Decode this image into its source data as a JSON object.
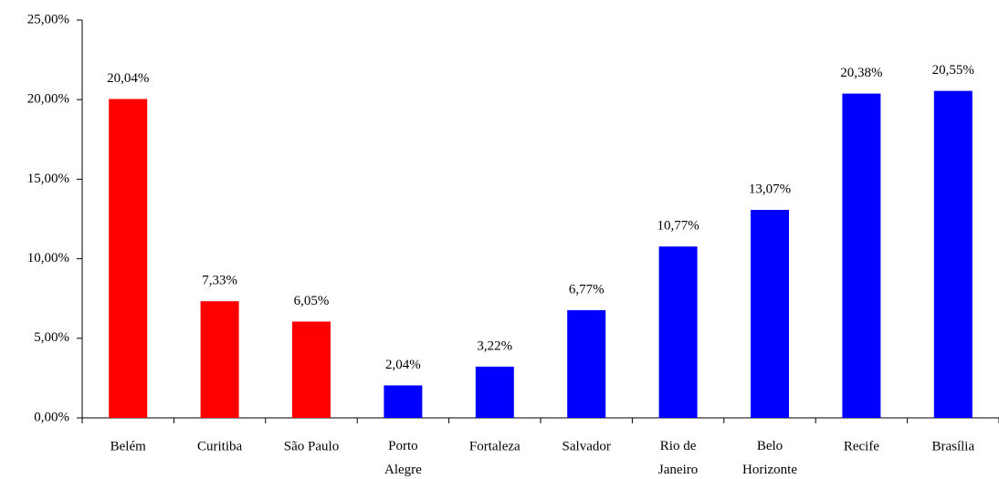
{
  "chart_data": {
    "type": "bar",
    "categories": [
      "Belém",
      "Curitiba",
      "São Paulo",
      "Porto\nAlegre",
      "Fortaleza",
      "Salvador",
      "Rio de\nJaneiro",
      "Belo\nHorizonte",
      "Recife",
      "Brasília"
    ],
    "values": [
      20.04,
      7.33,
      6.05,
      2.04,
      3.22,
      6.77,
      10.77,
      13.07,
      20.38,
      20.55
    ],
    "value_labels": [
      "20,04%",
      "7,33%",
      "6,05%",
      "2,04%",
      "3,22%",
      "6,77%",
      "10,77%",
      "13,07%",
      "20,38%",
      "20,55%"
    ],
    "colors": [
      "#ff0000",
      "#ff0000",
      "#ff0000",
      "#0000ff",
      "#0000ff",
      "#0000ff",
      "#0000ff",
      "#0000ff",
      "#0000ff",
      "#0000ff"
    ],
    "ylim": [
      0,
      25
    ],
    "yticks": [
      {
        "value": 0,
        "label": "0,00%"
      },
      {
        "value": 5,
        "label": "5,00%"
      },
      {
        "value": 10,
        "label": "10,00%"
      },
      {
        "value": 15,
        "label": "15,00%"
      },
      {
        "value": 20,
        "label": "20,00%"
      },
      {
        "value": 25,
        "label": "25,00%"
      }
    ],
    "grid": false
  }
}
